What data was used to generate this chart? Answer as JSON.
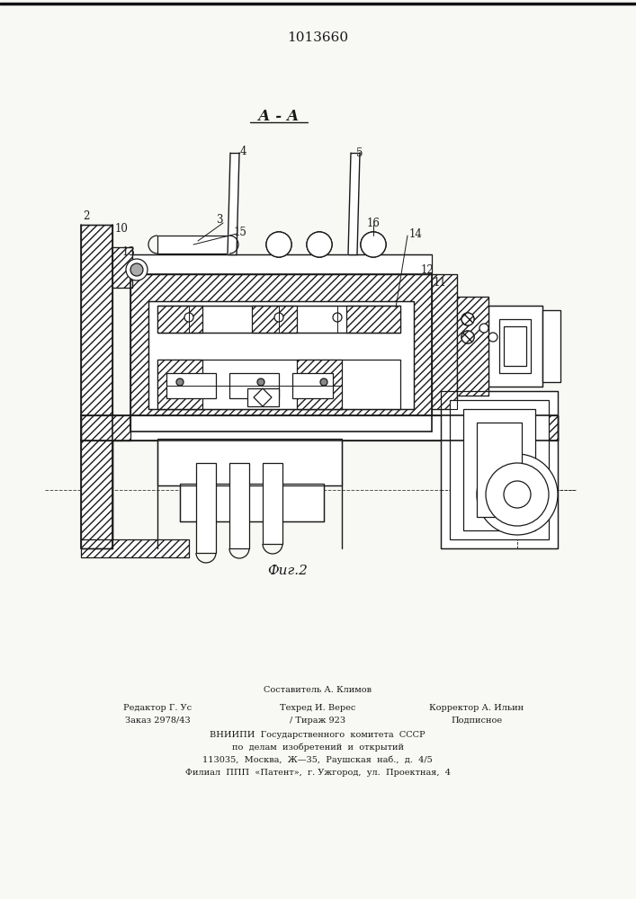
{
  "title": "1013660",
  "section_label": "А - А",
  "fig_label": "Фиг.2",
  "footer_line1": "Составитель А. Климов",
  "footer_line2_left": "Редактор Г. Ус",
  "footer_line2_mid": "Техред И. Верес",
  "footer_line2_right": "Корректор А. Ильин",
  "footer_line3_left": "Заказ 2978/43",
  "footer_line3_mid": "/ Тираж 923",
  "footer_line3_right": "Подписное",
  "footer_line4": "ВНИИПИ  Государственного  комитета  СССР",
  "footer_line5": "по  делам  изобретений  и  открытий",
  "footer_line6": "113035,  Москва,  Ж—35,  Раушская  наб.,  д.  4/5",
  "footer_line7": "Филиал  ППП  «Патент»,  г. Ужгород,  ул.  Проектная,  4",
  "bg_color": "#f8f8f5",
  "line_color": "#1a1a1a"
}
